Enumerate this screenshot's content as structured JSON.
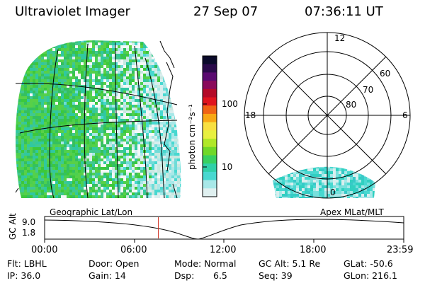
{
  "header": {
    "instrument": "Ultraviolet Imager",
    "date": "27 Sep 07",
    "time": "07:36:11 UT"
  },
  "colorbar": {
    "unit_label": "photon cm⁻²s⁻¹",
    "ticks": [
      "100",
      "10"
    ],
    "colors": [
      "#0a0a2a",
      "#2a0a4a",
      "#5a0a70",
      "#8a0a5a",
      "#b40a28",
      "#e0141e",
      "#f06414",
      "#f8a814",
      "#f8e040",
      "#e8f040",
      "#b0e828",
      "#70d828",
      "#38d060",
      "#30d0a8",
      "#48d8d0",
      "#a8e8e8",
      "#e0f0f0"
    ]
  },
  "polar": {
    "mlt_labels": [
      "12",
      "18",
      "6",
      "0"
    ],
    "lat_labels": [
      "60",
      "70",
      "80"
    ]
  },
  "plot": {
    "left_label": "Geographic Lat/Lon",
    "right_label": "Apex MLat/MLT",
    "ylabel": "GC Alt",
    "yticks": [
      "9.0",
      "1.8"
    ],
    "xticks": [
      "00:00",
      "06:00",
      "12:00",
      "18:00",
      "23:59"
    ],
    "marker_hour": 7.6
  },
  "info": {
    "flt": "Flt: LBHL",
    "ip": "IP: 36.0",
    "door": "Door: Open",
    "gain": "Gain: 14",
    "mode": "Mode: Normal",
    "dsp_label": "Dsp:",
    "dsp_value": "6.5",
    "gcalt": "GC Alt: 5.1 Re",
    "seq": "Seq: 39",
    "glat": "GLat: -50.6",
    "glon": "GLon: 216.1"
  }
}
